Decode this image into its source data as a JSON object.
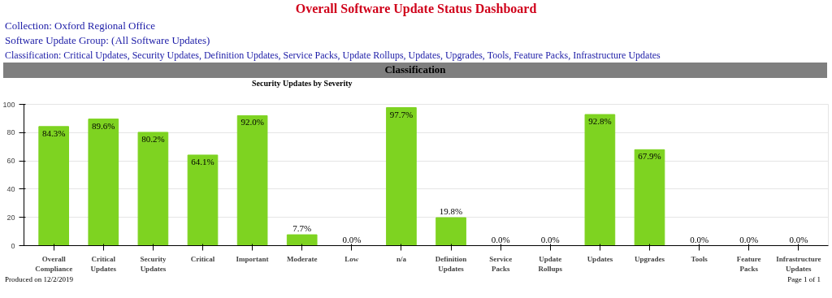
{
  "chart_data": {
    "type": "bar",
    "title": "Overall Software Update Status Dashboard",
    "subtitle": "Collection: Oxford Regional Office",
    "annotations": [
      "Software Update Group: (All Software Updates)",
      "Classification: Critical Updates, Security Updates, Definition Updates, Service Packs, Update Rollups, Updates, Upgrades, Tools, Feature Packs, Infrastructure Updates",
      "Classification",
      "Security Updates by Severity",
      "Produced on 12/2/2019",
      "Page 1 of 1"
    ],
    "categories": [
      "Overall Compliance",
      "Critical Updates",
      "Security Updates",
      "Critical",
      "Important",
      "Moderate",
      "Low",
      "n/a",
      "Definition Updates",
      "Service Packs",
      "Update Rollups",
      "Updates",
      "Upgrades",
      "Tools",
      "Feature Packs",
      "Infrastructure Updates"
    ],
    "values": [
      84.3,
      89.6,
      80.2,
      64.1,
      92.0,
      7.7,
      0.0,
      97.7,
      19.8,
      0.0,
      0.0,
      92.8,
      67.9,
      0.0,
      0.0,
      0.0
    ],
    "value_labels": [
      "84.3%",
      "89.6%",
      "80.2%",
      "64.1%",
      "92.0%",
      "7.7%",
      "0.0%",
      "97.7%",
      "19.8%",
      "0.0%",
      "0.0%",
      "92.8%",
      "67.9%",
      "0.0%",
      "0.0%",
      "0.0%"
    ],
    "color": "#7ed321",
    "ylim": [
      0,
      100
    ],
    "yticks": [
      0,
      20,
      40,
      60,
      80,
      100
    ],
    "grid": "y"
  }
}
